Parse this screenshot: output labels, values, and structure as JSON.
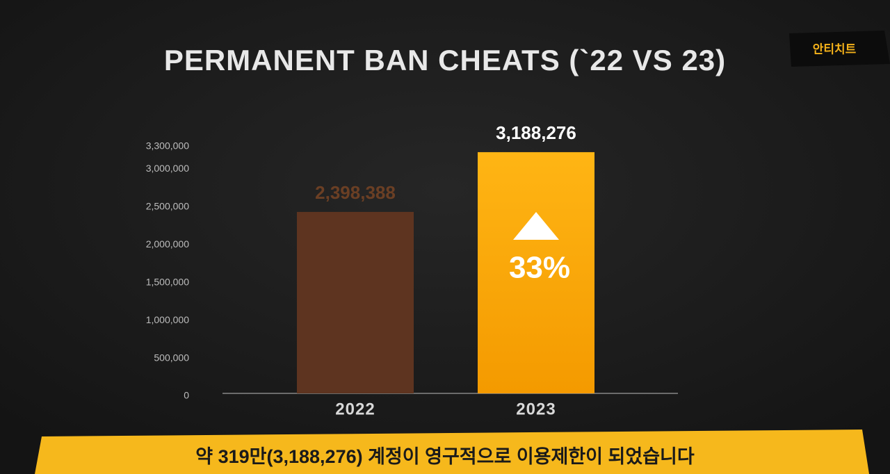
{
  "chart_data": {
    "type": "bar",
    "title": "PERMANENT BAN CHEATS (`22 VS 23)",
    "categories": [
      "2022",
      "2023"
    ],
    "values": [
      2398388,
      3188276
    ],
    "value_labels": [
      "2,398,388",
      "3,188,276"
    ],
    "colors": [
      "#5e3420",
      "#f9a800"
    ],
    "label_colors": [
      "#6b3f24",
      "#ffffff"
    ],
    "annotation": "33%",
    "ylim": [
      0,
      3500000
    ],
    "yticks": [
      0,
      {
        "value": 500000,
        "label": "500,000"
      },
      {
        "value": 1000000,
        "label": "1,000,000"
      },
      {
        "value": 1500000,
        "label": "1,500,000"
      },
      {
        "value": 2000000,
        "label": "2,000,000"
      },
      {
        "value": 2500000,
        "label": "2,500,000"
      },
      {
        "value": 3000000,
        "label": "3,000,000"
      },
      {
        "value": 3300000,
        "label": "3,300,000"
      }
    ],
    "grid": false
  },
  "badge": "안티치트",
  "caption": "약 319만(3,188,276) 계정이 영구적으로 이용제한이 되었습니다"
}
